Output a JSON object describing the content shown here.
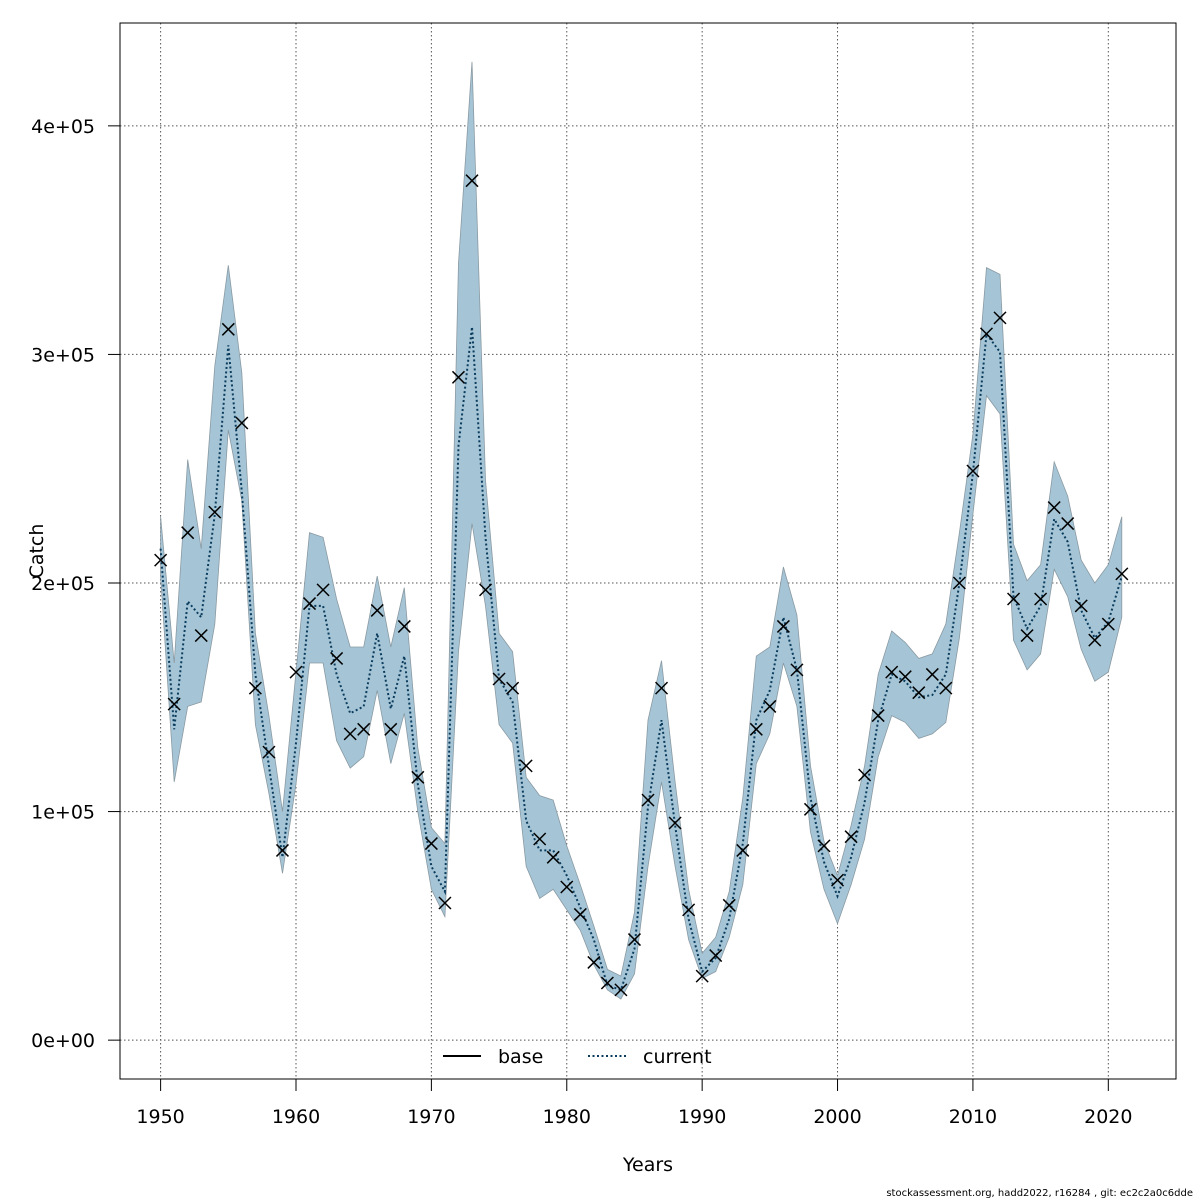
{
  "chart_data": {
    "type": "line",
    "title": "",
    "xlabel": "Years",
    "ylabel": "Catch",
    "xlim": [
      1947,
      2025
    ],
    "ylim": [
      -17000,
      445000
    ],
    "x_ticks": [
      1950,
      1960,
      1970,
      1980,
      1990,
      2000,
      2010,
      2020
    ],
    "x_tick_labels": [
      "1950",
      "1960",
      "1970",
      "1980",
      "1990",
      "2000",
      "2010",
      "2020"
    ],
    "y_ticks": [
      0,
      100000,
      200000,
      300000,
      400000
    ],
    "y_tick_labels": [
      "0e+00",
      "1e+05",
      "2e+05",
      "3e+05",
      "4e+05"
    ],
    "grid": true,
    "legend_position": "bottom-center",
    "colors": {
      "band": "#a5c5d6",
      "band_edge": "#8a9aa3",
      "current": "#0b3c5d",
      "base": "#000000",
      "points": "#000000"
    },
    "legend": [
      {
        "label": "base",
        "style": "solid",
        "color": "#000000"
      },
      {
        "label": "current",
        "style": "dotted",
        "color": "#0b3c5d"
      }
    ],
    "years": [
      1950,
      1951,
      1952,
      1953,
      1954,
      1955,
      1956,
      1957,
      1958,
      1959,
      1960,
      1961,
      1962,
      1963,
      1964,
      1965,
      1966,
      1967,
      1968,
      1969,
      1970,
      1971,
      1972,
      1973,
      1974,
      1975,
      1976,
      1977,
      1978,
      1979,
      1980,
      1981,
      1982,
      1983,
      1984,
      1985,
      1986,
      1987,
      1988,
      1989,
      1990,
      1991,
      1992,
      1993,
      1994,
      1995,
      1996,
      1997,
      1998,
      1999,
      2000,
      2001,
      2002,
      2003,
      2004,
      2005,
      2006,
      2007,
      2008,
      2009,
      2010,
      2011,
      2012,
      2013,
      2014,
      2015,
      2016,
      2017,
      2018,
      2019,
      2020,
      2021
    ],
    "series": [
      {
        "name": "current",
        "values": [
          215000,
          136000,
          192000,
          185000,
          230000,
          304000,
          240000,
          160000,
          120000,
          80000,
          130000,
          190000,
          190000,
          160000,
          143000,
          146000,
          178000,
          145000,
          168000,
          112000,
          76000,
          65000,
          260000,
          312000,
          220000,
          158000,
          148000,
          96000,
          83000,
          83000,
          72000,
          58000,
          44000,
          24000,
          22000,
          40000,
          102000,
          140000,
          94000,
          53000,
          30000,
          36000,
          53000,
          86000,
          140000,
          153000,
          185000,
          162000,
          106000,
          78000,
          63000,
          80000,
          104000,
          140000,
          160000,
          157000,
          150000,
          151000,
          160000,
          200000,
          248000,
          309000,
          301000,
          194000,
          180000,
          190000,
          228000,
          218000,
          188000,
          176000,
          183000,
          203000
        ]
      }
    ],
    "band_upper": [
      229000,
      165000,
      254000,
      215000,
      295000,
      339000,
      292000,
      178000,
      142000,
      100000,
      161000,
      222000,
      220000,
      193000,
      172000,
      172000,
      203000,
      172000,
      198000,
      128000,
      93000,
      86000,
      340000,
      428000,
      245000,
      178000,
      170000,
      115000,
      107000,
      105000,
      85000,
      68000,
      50000,
      31000,
      28000,
      56000,
      140000,
      166000,
      113000,
      66000,
      38000,
      45000,
      65000,
      106000,
      168000,
      172000,
      207000,
      186000,
      120000,
      87000,
      72000,
      94000,
      120000,
      160000,
      179000,
      174000,
      167000,
      169000,
      182000,
      222000,
      265000,
      338000,
      335000,
      217000,
      201000,
      208000,
      253000,
      238000,
      210000,
      200000,
      208000,
      229000
    ],
    "band_lower": [
      203000,
      113000,
      146000,
      148000,
      182000,
      267000,
      236000,
      138000,
      108000,
      73000,
      112000,
      165000,
      165000,
      131000,
      119000,
      124000,
      153000,
      121000,
      143000,
      100000,
      66000,
      54000,
      170000,
      226000,
      190000,
      138000,
      130000,
      76000,
      62000,
      66000,
      57000,
      48000,
      33000,
      22000,
      18000,
      29000,
      76000,
      113000,
      76000,
      44000,
      27000,
      30000,
      45000,
      68000,
      121000,
      134000,
      165000,
      146000,
      91000,
      66000,
      51000,
      68000,
      88000,
      124000,
      142000,
      139000,
      132000,
      134000,
      139000,
      176000,
      230000,
      282000,
      274000,
      175000,
      162000,
      169000,
      206000,
      194000,
      171000,
      157000,
      161000,
      185000
    ],
    "observed_points": [
      210000,
      147000,
      222000,
      177000,
      231000,
      311000,
      270000,
      154000,
      126000,
      83000,
      161000,
      191000,
      197000,
      167000,
      134000,
      136000,
      188000,
      136000,
      181000,
      115000,
      86000,
      60000,
      290000,
      376000,
      197000,
      158000,
      154000,
      120000,
      88000,
      80000,
      67000,
      55000,
      34000,
      25000,
      22000,
      44000,
      105000,
      154000,
      95000,
      57000,
      28000,
      37000,
      59000,
      83000,
      136000,
      146000,
      181000,
      162000,
      101000,
      85000,
      70000,
      89000,
      116000,
      142000,
      161000,
      159000,
      152000,
      160000,
      154000,
      200000,
      249000,
      309000,
      316000,
      193000,
      177000,
      193000,
      233000,
      226000,
      190000,
      175000,
      182000,
      204000
    ]
  },
  "footer_text": "stockassessment.org, hadd2022, r16284 , git: ec2c2a0c6dde"
}
